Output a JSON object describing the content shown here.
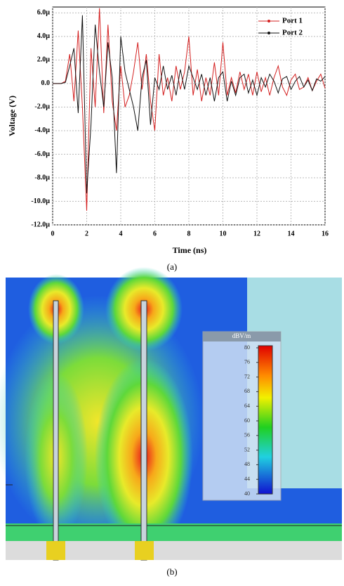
{
  "chart_data": {
    "type": "line",
    "y_label": "Voltage (V)",
    "x_label": "Time (ns)",
    "x": [
      0,
      0.25,
      0.5,
      0.75,
      1,
      1.25,
      1.5,
      1.75,
      2,
      2.25,
      2.5,
      2.75,
      3,
      3.25,
      3.5,
      3.75,
      4,
      4.25,
      4.5,
      4.75,
      5,
      5.25,
      5.5,
      5.75,
      6,
      6.25,
      6.5,
      6.75,
      7,
      7.25,
      7.5,
      7.75,
      8,
      8.25,
      8.5,
      8.75,
      9,
      9.25,
      9.5,
      9.75,
      10,
      10.25,
      10.5,
      10.75,
      11,
      11.25,
      11.5,
      11.75,
      12,
      12.25,
      12.5,
      12.75,
      13,
      13.25,
      13.5,
      13.75,
      14,
      14.25,
      14.5,
      14.75,
      15,
      15.25,
      15.5,
      15.75,
      16
    ],
    "series": [
      {
        "name": "Port 1",
        "color": "#d42020",
        "values": [
          0,
          0,
          0,
          2e-07,
          2.5e-06,
          -1.5e-06,
          4.5e-06,
          -2e-06,
          -1.08e-05,
          3e-06,
          -2e-06,
          6.4e-06,
          -2.5e-06,
          5e-06,
          -1.5e-06,
          -4e-06,
          1.5e-06,
          -2e-06,
          -1e-06,
          1e-06,
          3.5e-06,
          -5e-07,
          2.5e-06,
          -1.5e-06,
          -4e-06,
          2.5e-06,
          -1e-06,
          5e-07,
          -1.5e-06,
          1.5e-06,
          -5e-07,
          1e-06,
          4e-06,
          -1e-06,
          1.2e-06,
          -1.5e-06,
          5e-07,
          -1e-06,
          1.8e-06,
          -1e-06,
          3.5e-06,
          -1e-06,
          5e-07,
          -8e-07,
          1e-06,
          -5e-07,
          8e-07,
          -1e-06,
          1e-06,
          -7e-07,
          5e-07,
          -1e-06,
          5e-07,
          1.5e-06,
          -3e-07,
          -1e-06,
          3e-07,
          8e-07,
          -5e-07,
          -3e-07,
          5e-07,
          -6e-07,
          2e-07,
          8e-07,
          -4e-07
        ]
      },
      {
        "name": "Port 2",
        "color": "#111111",
        "values": [
          0,
          0,
          0,
          1e-07,
          1.5e-06,
          3e-06,
          -2.5e-06,
          5.8e-06,
          -9.3e-06,
          -3.5e-06,
          5e-06,
          1e-06,
          -2e-06,
          3.5e-06,
          5e-07,
          -7.6e-06,
          4e-06,
          1e-06,
          -5e-07,
          -2e-06,
          -4e-06,
          5e-07,
          2e-06,
          -3.5e-06,
          5e-07,
          -5e-07,
          1.5e-06,
          -5e-07,
          7e-07,
          -1e-06,
          1.2e-06,
          -5e-07,
          1.5e-06,
          5e-07,
          -5e-07,
          8e-07,
          -1e-06,
          5e-07,
          -1.5e-06,
          5e-07,
          1e-06,
          -1.5e-06,
          2e-07,
          -1e-06,
          5e-07,
          8e-07,
          -8e-07,
          3e-07,
          -1e-06,
          5e-07,
          -3e-07,
          8e-07,
          2e-07,
          -8e-07,
          4e-07,
          6e-07,
          -5e-07,
          2e-07,
          6e-07,
          -3e-07,
          3e-07,
          -6e-07,
          4e-07,
          2e-07,
          6e-07
        ]
      }
    ],
    "xlim": [
      0,
      16
    ],
    "xticks": [
      0,
      2,
      4,
      6,
      8,
      10,
      12,
      14,
      16
    ],
    "ylim": [
      -1.2e-05,
      6.5e-06
    ],
    "yticks": [
      {
        "value": 6e-06,
        "label": "6.0µ"
      },
      {
        "value": 4e-06,
        "label": "4.0µ"
      },
      {
        "value": 2e-06,
        "label": "2.0µ"
      },
      {
        "value": 0,
        "label": "0.0"
      },
      {
        "value": -2e-06,
        "label": "-2.0µ"
      },
      {
        "value": -4e-06,
        "label": "-4.0µ"
      },
      {
        "value": -6e-06,
        "label": "-6.0µ"
      },
      {
        "value": -8e-06,
        "label": "-8.0µ"
      },
      {
        "value": -1e-05,
        "label": "-10.0µ"
      },
      {
        "value": -1.2e-05,
        "label": "-12.0µ"
      }
    ],
    "grid": true,
    "legend": "upper right"
  },
  "caption_a": "(a)",
  "field_plot": {
    "colorbar": {
      "title": "dBV/m",
      "lim": [
        40,
        80
      ],
      "ticks": [
        80,
        76,
        72,
        68,
        64,
        60,
        56,
        52,
        48,
        44,
        40
      ]
    },
    "caption": "(b)"
  }
}
